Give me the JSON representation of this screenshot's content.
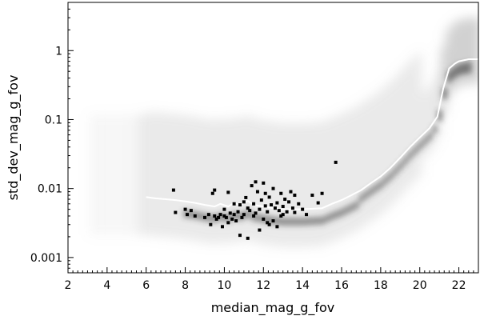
{
  "chart_data": {
    "type": "scatter",
    "title": "",
    "xlabel": "median_mag_g_fov",
    "ylabel": "std_dev_mag_g_fov",
    "x_scale": "linear",
    "y_scale": "log",
    "xlim": [
      2,
      23
    ],
    "ylim": [
      0.0006,
      5
    ],
    "x_ticks": [
      2,
      4,
      6,
      8,
      10,
      12,
      14,
      16,
      18,
      20,
      22
    ],
    "x_tick_labels": [
      "2",
      "4",
      "6",
      "8",
      "10",
      "12",
      "14",
      "16",
      "18",
      "20",
      "22"
    ],
    "y_ticks": [
      0.001,
      0.01,
      0.1,
      1
    ],
    "y_tick_labels": [
      "0.001",
      "0.01",
      "0.1",
      "1"
    ],
    "grid": false,
    "legend": "none",
    "colors": {
      "density": "#9a9a9a",
      "core": "#3a3a3a",
      "median_line": "#ffffff",
      "highlight_points": "#000000"
    },
    "series": [
      {
        "type": "line",
        "x": [
          6.0,
          6.5,
          7.0,
          7.5,
          8.0,
          8.5,
          9.0,
          9.5,
          9.8,
          10.2,
          10.5,
          10.8,
          11.2,
          11.5,
          12.0,
          12.5,
          13.0,
          13.5,
          14.0,
          15.0,
          15.5,
          16.0,
          16.5,
          17.0,
          17.5,
          18.0,
          18.5,
          19.0,
          19.5,
          20.0,
          20.5,
          20.9,
          21.2,
          21.5,
          21.8,
          22.0,
          22.5,
          23.0
        ],
        "y": [
          0.0075,
          0.0072,
          0.007,
          0.0068,
          0.0065,
          0.0062,
          0.0058,
          0.0055,
          0.006,
          0.0055,
          0.0062,
          0.0058,
          0.0066,
          0.0058,
          0.0055,
          0.0052,
          0.005,
          0.005,
          0.005,
          0.0052,
          0.006,
          0.0068,
          0.008,
          0.0095,
          0.012,
          0.015,
          0.02,
          0.028,
          0.04,
          0.055,
          0.075,
          0.11,
          0.28,
          0.55,
          0.65,
          0.7,
          0.75,
          0.75
        ]
      },
      {
        "type": "scatter",
        "x": [
          7.4,
          7.5,
          8.0,
          8.1,
          8.3,
          8.5,
          9.0,
          9.2,
          9.3,
          9.4,
          9.5,
          9.6,
          9.7,
          9.8,
          9.9,
          10.0,
          10.0,
          10.1,
          10.2,
          10.3,
          10.4,
          10.5,
          10.5,
          10.6,
          10.7,
          10.8,
          10.9,
          11.0,
          11.0,
          11.1,
          11.2,
          11.3,
          11.4,
          11.5,
          11.6,
          11.7,
          11.8,
          11.9,
          12.0,
          12.1,
          12.2,
          12.3,
          12.4,
          12.5,
          12.6,
          12.7,
          12.8,
          12.9,
          13.0,
          13.1,
          13.2,
          13.3,
          13.4,
          13.5,
          13.6,
          13.8,
          14.0,
          14.2,
          14.5,
          14.8,
          15.0,
          15.7,
          11.5,
          12.0,
          12.5,
          13.0,
          12.3,
          11.8,
          12.7,
          10.8,
          11.2,
          12.2,
          12.9,
          13.6,
          9.5,
          10.2,
          11.6,
          12.1
        ],
        "y": [
          0.0095,
          0.0045,
          0.005,
          0.0042,
          0.0048,
          0.004,
          0.0038,
          0.0042,
          0.003,
          0.0085,
          0.004,
          0.0036,
          0.0038,
          0.0042,
          0.0028,
          0.004,
          0.005,
          0.0038,
          0.0032,
          0.0044,
          0.0036,
          0.0042,
          0.006,
          0.0034,
          0.0046,
          0.0058,
          0.0038,
          0.0064,
          0.0042,
          0.0074,
          0.0052,
          0.0048,
          0.011,
          0.006,
          0.0044,
          0.009,
          0.005,
          0.0068,
          0.012,
          0.0056,
          0.0046,
          0.0075,
          0.0058,
          0.01,
          0.0052,
          0.0062,
          0.0048,
          0.0085,
          0.0055,
          0.007,
          0.0046,
          0.0064,
          0.009,
          0.0052,
          0.008,
          0.006,
          0.005,
          0.0042,
          0.008,
          0.0062,
          0.0085,
          0.024,
          0.004,
          0.0036,
          0.0034,
          0.0042,
          0.003,
          0.0025,
          0.0028,
          0.0021,
          0.0019,
          0.0032,
          0.004,
          0.0045,
          0.0095,
          0.0088,
          0.0125,
          0.0085
        ]
      }
    ]
  }
}
